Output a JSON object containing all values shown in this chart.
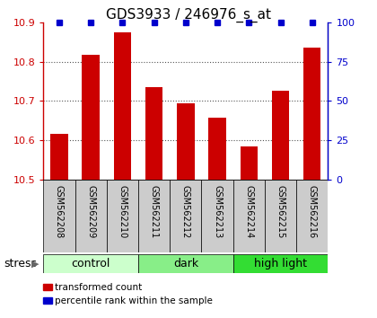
{
  "title": "GDS3933 / 246976_s_at",
  "samples": [
    "GSM562208",
    "GSM562209",
    "GSM562210",
    "GSM562211",
    "GSM562212",
    "GSM562213",
    "GSM562214",
    "GSM562215",
    "GSM562216"
  ],
  "values": [
    10.617,
    10.818,
    10.875,
    10.735,
    10.693,
    10.657,
    10.585,
    10.727,
    10.836
  ],
  "percentiles": [
    100,
    100,
    100,
    100,
    100,
    100,
    100,
    100,
    100
  ],
  "ylim_left": [
    10.5,
    10.9
  ],
  "ylim_right": [
    0,
    100
  ],
  "yticks_left": [
    10.5,
    10.6,
    10.7,
    10.8,
    10.9
  ],
  "yticks_right": [
    0,
    25,
    50,
    75,
    100
  ],
  "bar_color": "#cc0000",
  "percentile_color": "#0000cc",
  "groups": [
    {
      "label": "control",
      "start": 0,
      "end": 3,
      "color": "#ccffcc"
    },
    {
      "label": "dark",
      "start": 3,
      "end": 6,
      "color": "#88ee88"
    },
    {
      "label": "high light",
      "start": 6,
      "end": 9,
      "color": "#33dd33"
    }
  ],
  "stress_label": "stress",
  "legend_items": [
    {
      "color": "#cc0000",
      "label": "transformed count"
    },
    {
      "color": "#0000cc",
      "label": "percentile rank within the sample"
    }
  ],
  "grid_color": "#555555",
  "bar_width": 0.55,
  "sample_box_color": "#cccccc",
  "title_fontsize": 11,
  "tick_fontsize": 8,
  "label_fontsize": 9,
  "sample_fontsize": 7
}
